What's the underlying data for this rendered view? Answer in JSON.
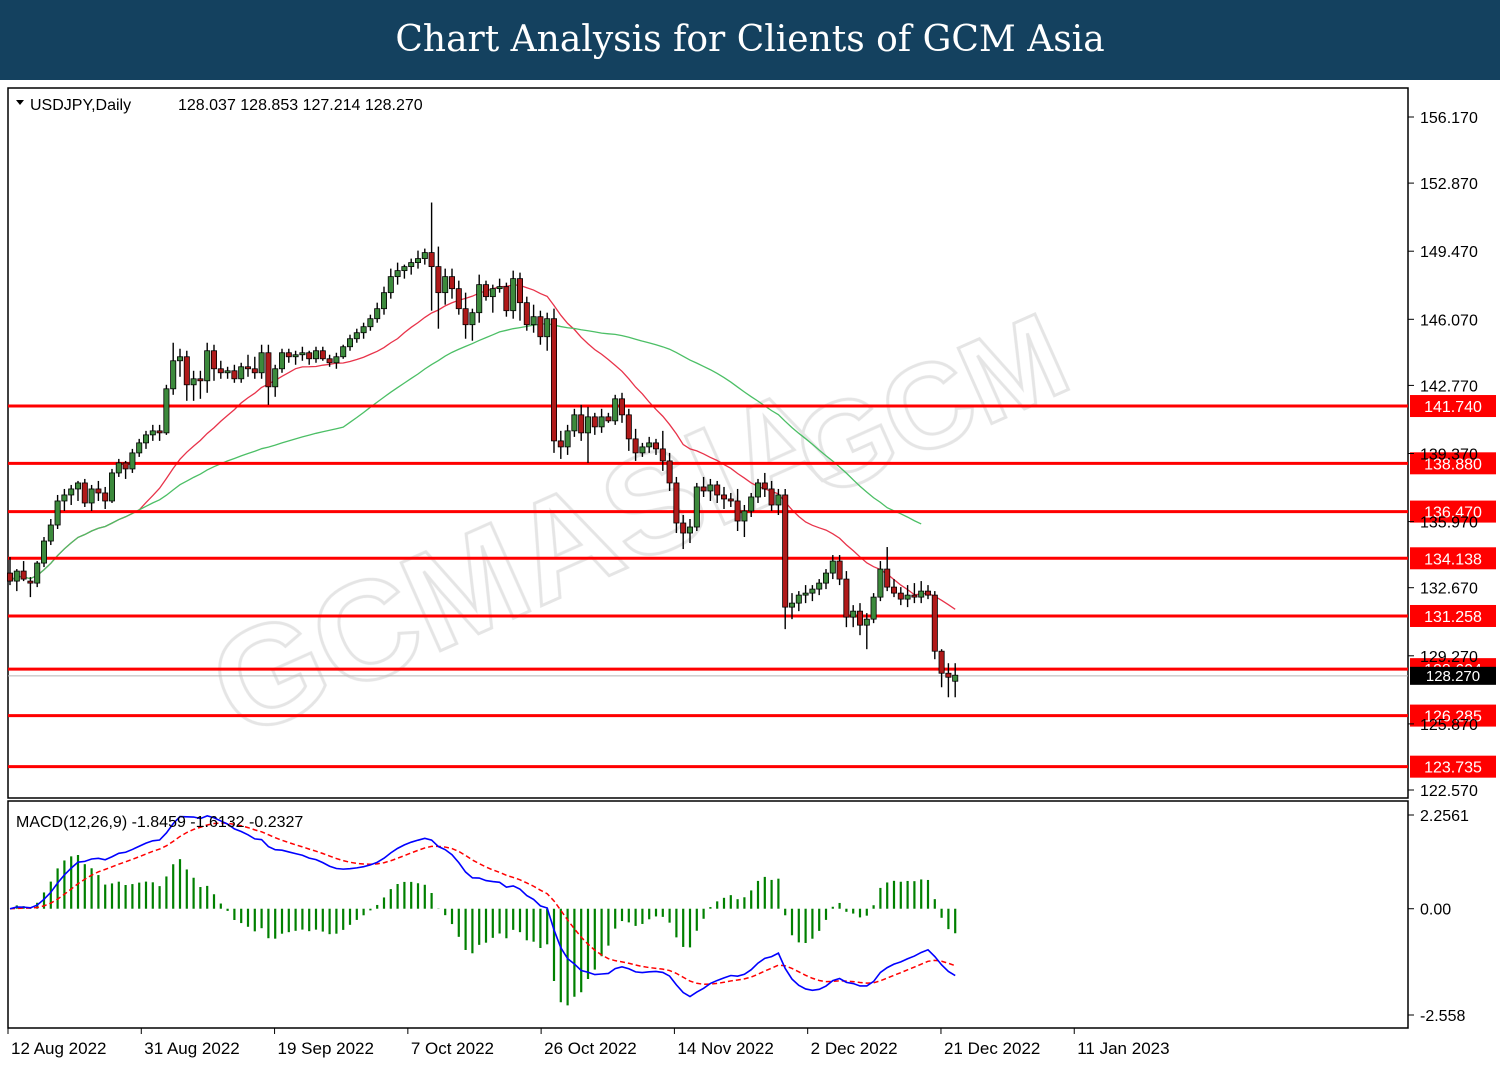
{
  "banner": {
    "title": "Chart Analysis for Clients of GCM Asia"
  },
  "chart_data": {
    "type": "candlestick",
    "symbol_header": "USDJPY,Daily",
    "ohlc_header": "128.037 128.853 127.214 128.270",
    "price_axis": {
      "min": 122.57,
      "max": 156.17,
      "ticks": [
        "156.170",
        "152.870",
        "149.470",
        "146.070",
        "142.770",
        "139.370",
        "135.970",
        "132.670",
        "129.270",
        "125.870",
        "122.570"
      ]
    },
    "current_price": "128.270",
    "levels": [
      "141.740",
      "138.880",
      "136.470",
      "134.138",
      "131.258",
      "128.604",
      "126.285",
      "123.735"
    ],
    "x_labels": [
      "12 Aug 2022",
      "31 Aug 2022",
      "19 Sep 2022",
      "7 Oct 2022",
      "26 Oct 2022",
      "14 Nov 2022",
      "2 Dec 2022",
      "21 Dec 2022",
      "11 Jan 2023"
    ],
    "candles": [
      [
        133.4,
        134.2,
        132.8,
        133.0
      ],
      [
        133.0,
        133.6,
        132.5,
        133.5
      ],
      [
        133.5,
        134.0,
        133.0,
        133.1
      ],
      [
        133.0,
        133.2,
        132.2,
        132.9
      ],
      [
        132.9,
        134.0,
        132.7,
        133.9
      ],
      [
        133.9,
        135.2,
        133.7,
        135.0
      ],
      [
        135.0,
        136.1,
        134.8,
        135.8
      ],
      [
        135.8,
        137.3,
        135.6,
        137.0
      ],
      [
        137.0,
        137.6,
        136.5,
        137.3
      ],
      [
        137.3,
        137.8,
        136.8,
        137.6
      ],
      [
        137.6,
        138.0,
        137.0,
        137.9
      ],
      [
        137.9,
        138.1,
        136.7,
        136.9
      ],
      [
        136.9,
        137.8,
        136.5,
        137.6
      ],
      [
        137.6,
        138.0,
        137.0,
        137.4
      ],
      [
        137.4,
        137.7,
        136.6,
        137.0
      ],
      [
        137.0,
        138.6,
        136.9,
        138.4
      ],
      [
        138.4,
        139.1,
        138.2,
        138.9
      ],
      [
        138.9,
        139.0,
        138.1,
        138.6
      ],
      [
        138.6,
        139.6,
        138.4,
        139.4
      ],
      [
        139.4,
        140.1,
        139.2,
        139.9
      ],
      [
        139.9,
        140.5,
        139.6,
        140.3
      ],
      [
        140.3,
        140.8,
        140.0,
        140.5
      ],
      [
        140.5,
        140.8,
        140.0,
        140.4
      ],
      [
        140.4,
        142.8,
        140.3,
        142.6
      ],
      [
        142.6,
        144.9,
        142.3,
        144.0
      ],
      [
        144.0,
        144.6,
        143.2,
        144.2
      ],
      [
        144.2,
        144.5,
        142.0,
        142.8
      ],
      [
        142.8,
        143.5,
        142.0,
        143.1
      ],
      [
        143.1,
        143.5,
        142.1,
        143.0
      ],
      [
        143.0,
        144.9,
        142.4,
        144.5
      ],
      [
        144.5,
        144.8,
        143.0,
        143.6
      ],
      [
        143.6,
        144.0,
        143.1,
        143.4
      ],
      [
        143.4,
        143.7,
        143.1,
        143.5
      ],
      [
        143.5,
        143.8,
        142.9,
        143.1
      ],
      [
        143.1,
        143.9,
        142.9,
        143.7
      ],
      [
        143.7,
        144.3,
        143.2,
        143.6
      ],
      [
        143.6,
        144.2,
        143.1,
        143.4
      ],
      [
        143.4,
        144.8,
        143.1,
        144.4
      ],
      [
        144.4,
        144.8,
        141.8,
        142.7
      ],
      [
        142.7,
        143.8,
        142.2,
        143.6
      ],
      [
        143.6,
        144.6,
        143.4,
        144.4
      ],
      [
        144.4,
        144.6,
        143.9,
        144.2
      ],
      [
        144.2,
        144.5,
        143.8,
        144.3
      ],
      [
        144.3,
        144.7,
        144.0,
        144.4
      ],
      [
        144.4,
        144.5,
        143.8,
        144.1
      ],
      [
        144.1,
        144.7,
        143.9,
        144.5
      ],
      [
        144.5,
        144.7,
        144.0,
        144.1
      ],
      [
        144.1,
        144.3,
        143.7,
        143.9
      ],
      [
        143.9,
        144.4,
        143.6,
        144.2
      ],
      [
        144.2,
        144.8,
        144.1,
        144.7
      ],
      [
        144.7,
        145.3,
        144.5,
        145.1
      ],
      [
        145.1,
        145.6,
        144.9,
        145.4
      ],
      [
        145.4,
        145.9,
        145.1,
        145.7
      ],
      [
        145.7,
        146.3,
        145.5,
        146.1
      ],
      [
        146.1,
        146.9,
        145.9,
        146.6
      ],
      [
        146.6,
        147.7,
        146.3,
        147.4
      ],
      [
        147.4,
        148.6,
        147.1,
        148.2
      ],
      [
        148.2,
        148.9,
        147.8,
        148.5
      ],
      [
        148.5,
        148.8,
        148.1,
        148.7
      ],
      [
        148.7,
        149.1,
        148.3,
        148.9
      ],
      [
        148.9,
        149.5,
        148.6,
        149.1
      ],
      [
        149.1,
        149.6,
        148.8,
        149.4
      ],
      [
        149.4,
        151.9,
        146.5,
        148.7
      ],
      [
        148.7,
        149.7,
        145.6,
        147.4
      ],
      [
        147.4,
        148.6,
        146.8,
        148.2
      ],
      [
        148.2,
        148.6,
        147.1,
        147.6
      ],
      [
        147.6,
        148.0,
        146.3,
        146.6
      ],
      [
        146.6,
        147.4,
        145.1,
        145.8
      ],
      [
        145.8,
        146.6,
        145.0,
        146.4
      ],
      [
        146.4,
        148.3,
        145.9,
        147.8
      ],
      [
        147.8,
        148.0,
        147.0,
        147.2
      ],
      [
        147.2,
        147.8,
        146.4,
        147.6
      ],
      [
        147.6,
        148.1,
        147.4,
        147.7
      ],
      [
        147.7,
        147.9,
        146.2,
        146.5
      ],
      [
        146.5,
        148.5,
        146.1,
        148.1
      ],
      [
        148.1,
        148.4,
        146.0,
        146.9
      ],
      [
        146.9,
        147.2,
        145.5,
        145.8
      ],
      [
        145.8,
        146.8,
        145.4,
        146.2
      ],
      [
        146.2,
        146.5,
        144.8,
        145.2
      ],
      [
        145.2,
        146.4,
        144.5,
        146.1
      ],
      [
        146.1,
        146.6,
        139.4,
        140.0
      ],
      [
        140.0,
        140.5,
        139.1,
        139.7
      ],
      [
        139.7,
        140.8,
        139.3,
        140.5
      ],
      [
        140.5,
        141.6,
        140.2,
        141.3
      ],
      [
        141.3,
        141.8,
        140.0,
        140.4
      ],
      [
        140.4,
        141.7,
        138.9,
        141.2
      ],
      [
        141.2,
        141.4,
        140.3,
        140.7
      ],
      [
        140.7,
        141.6,
        140.4,
        141.2
      ],
      [
        141.2,
        141.4,
        140.9,
        141.0
      ],
      [
        141.0,
        142.3,
        140.8,
        142.1
      ],
      [
        142.1,
        142.4,
        140.9,
        141.3
      ],
      [
        141.3,
        141.6,
        139.5,
        140.1
      ],
      [
        140.1,
        140.6,
        139.0,
        139.4
      ],
      [
        139.4,
        139.9,
        139.2,
        139.7
      ],
      [
        139.7,
        140.2,
        139.4,
        139.9
      ],
      [
        139.9,
        140.1,
        139.3,
        139.6
      ],
      [
        139.6,
        140.5,
        138.5,
        139.0
      ],
      [
        139.0,
        139.4,
        137.5,
        137.9
      ],
      [
        137.9,
        138.2,
        135.4,
        135.9
      ],
      [
        135.9,
        136.3,
        134.6,
        135.4
      ],
      [
        135.4,
        136.1,
        134.9,
        135.7
      ],
      [
        135.7,
        137.9,
        135.5,
        137.7
      ],
      [
        137.7,
        138.2,
        137.2,
        137.5
      ],
      [
        137.5,
        138.1,
        137.0,
        137.8
      ],
      [
        137.8,
        138.0,
        136.9,
        137.3
      ],
      [
        137.3,
        137.7,
        136.6,
        137.1
      ],
      [
        137.1,
        137.4,
        136.7,
        137.0
      ],
      [
        137.0,
        137.6,
        135.5,
        136.0
      ],
      [
        136.0,
        136.8,
        135.2,
        136.5
      ],
      [
        136.5,
        137.4,
        136.2,
        137.2
      ],
      [
        137.2,
        138.1,
        136.9,
        137.9
      ],
      [
        137.9,
        138.4,
        137.2,
        137.6
      ],
      [
        137.6,
        138.0,
        136.5,
        136.8
      ],
      [
        136.8,
        137.6,
        136.3,
        137.3
      ],
      [
        137.3,
        137.6,
        130.6,
        131.7
      ],
      [
        131.7,
        132.4,
        131.1,
        131.9
      ],
      [
        131.9,
        132.5,
        131.5,
        132.3
      ],
      [
        132.3,
        132.8,
        131.9,
        132.4
      ],
      [
        132.4,
        132.8,
        132.0,
        132.6
      ],
      [
        132.6,
        133.1,
        132.3,
        132.9
      ],
      [
        132.9,
        133.6,
        132.6,
        133.4
      ],
      [
        133.4,
        134.3,
        133.1,
        134.0
      ],
      [
        134.0,
        134.3,
        132.8,
        133.1
      ],
      [
        133.1,
        133.5,
        130.7,
        131.2
      ],
      [
        131.2,
        131.8,
        130.7,
        131.5
      ],
      [
        131.5,
        131.9,
        130.3,
        130.8
      ],
      [
        130.8,
        131.4,
        129.6,
        131.1
      ],
      [
        131.1,
        132.4,
        130.9,
        132.2
      ],
      [
        132.2,
        134.0,
        132.0,
        133.6
      ],
      [
        133.6,
        134.7,
        132.5,
        132.7
      ],
      [
        132.7,
        133.1,
        132.2,
        132.4
      ],
      [
        132.4,
        132.7,
        131.8,
        132.1
      ],
      [
        132.1,
        132.8,
        131.7,
        132.3
      ],
      [
        132.3,
        132.9,
        131.9,
        132.2
      ],
      [
        132.2,
        133.0,
        131.9,
        132.5
      ],
      [
        132.5,
        132.8,
        132.1,
        132.3
      ],
      [
        132.3,
        132.5,
        129.1,
        129.5
      ],
      [
        129.5,
        129.6,
        127.7,
        128.4
      ],
      [
        128.4,
        128.9,
        127.2,
        128.2
      ],
      [
        128.0,
        128.9,
        127.2,
        128.3
      ]
    ],
    "macd": {
      "label": "MACD(12,26,9) -1.8459 -1.6132 -0.2327",
      "axis": {
        "min": -2.558,
        "max": 2.2561,
        "ticks": [
          "2.2561",
          "0.00",
          "-2.558"
        ]
      }
    },
    "colors": {
      "bull": "#3c8a3c",
      "bear": "#b01a1a",
      "ma_fast": "#e8334a",
      "ma_slow": "#4cbf66",
      "level": "#ff0000",
      "macd": "#0000ff",
      "signal": "#ff0000",
      "hist": "#008000"
    }
  }
}
